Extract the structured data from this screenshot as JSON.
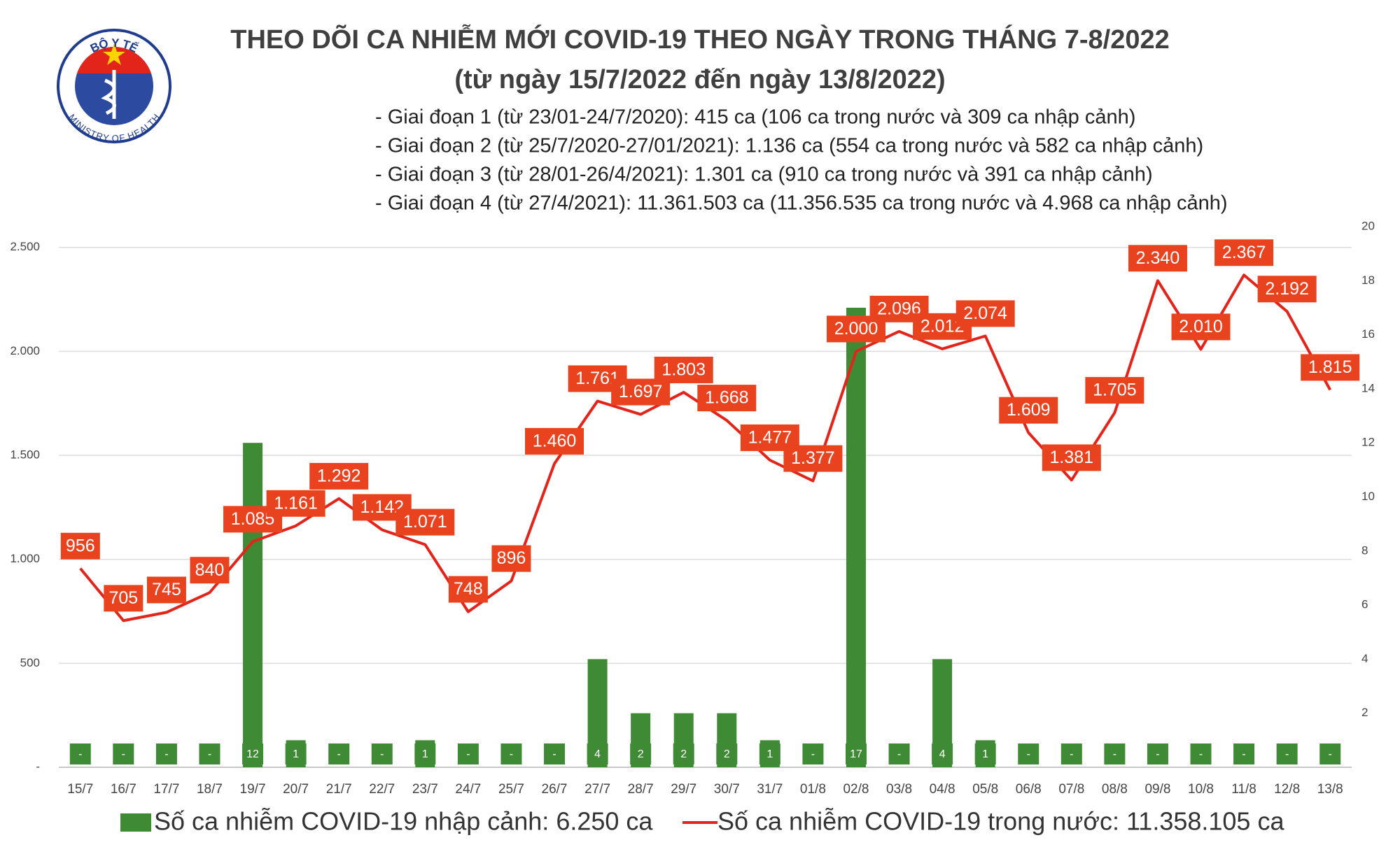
{
  "logo": {
    "top_text": "BỘ Y TẾ",
    "bottom_text": "MINISTRY OF HEALTH"
  },
  "chart_data": {
    "type": "combo",
    "title": "THEO DÕI CA NHIỄM MỚI COVID-19 THEO NGÀY TRONG THÁNG 7-8/2022",
    "subtitle": "(từ ngày 15/7/2022 đến ngày 13/8/2022)",
    "annotations": [
      "- Giai đoạn 1 (từ 23/01-24/7/2020): 415 ca (106 ca trong nước và 309 ca nhập cảnh)",
      "- Giai đoạn 2 (từ 25/7/2020-27/01/2021): 1.136 ca (554 ca trong nước và 582 ca nhập cảnh)",
      "- Giai đoạn 3 (từ 28/01-26/4/2021): 1.301 ca (910 ca trong nước và 391 ca nhập cảnh)",
      "- Giai đoạn 4 (từ 27/4/2021): 11.361.503 ca (11.356.535 ca trong nước và 4.968 ca nhập cảnh)"
    ],
    "categories": [
      "15/7",
      "16/7",
      "17/7",
      "18/7",
      "19/7",
      "20/7",
      "21/7",
      "22/7",
      "23/7",
      "24/7",
      "25/7",
      "26/7",
      "27/7",
      "28/7",
      "29/7",
      "30/7",
      "31/7",
      "01/8",
      "02/8",
      "03/8",
      "04/8",
      "05/8",
      "06/8",
      "07/8",
      "08/8",
      "09/8",
      "10/8",
      "11/8",
      "12/8",
      "13/8"
    ],
    "series": [
      {
        "name": "Số ca nhiễm COVID-19 nhập cảnh: 6.250 ca",
        "type": "bar",
        "axis": "y2",
        "color": "#3f8a34",
        "values": [
          0,
          0,
          0,
          0,
          12,
          1,
          0,
          0,
          1,
          0,
          0,
          0,
          4,
          2,
          2,
          2,
          1,
          0,
          17,
          0,
          4,
          1,
          0,
          0,
          0,
          0,
          0,
          0,
          0,
          0
        ],
        "value_labels": [
          "-",
          "-",
          "-",
          "-",
          "12",
          "1",
          "-",
          "-",
          "1",
          "-",
          "-",
          "-",
          "4",
          "2",
          "2",
          "2",
          "1",
          "-",
          "17",
          "-",
          "4",
          "1",
          "-",
          "-",
          "-",
          "-",
          "-",
          "-",
          "-",
          "-"
        ]
      },
      {
        "name": "Số ca nhiễm COVID-19 trong nước: 11.358.105 ca",
        "type": "line",
        "color": "#e3241b",
        "values": [
          956,
          705,
          745,
          840,
          1085,
          1161,
          1292,
          1142,
          1071,
          748,
          896,
          1460,
          1761,
          1697,
          1803,
          1668,
          1477,
          1377,
          2000,
          2096,
          2012,
          2074,
          1609,
          1381,
          1705,
          2340,
          2010,
          2367,
          2192,
          1815
        ],
        "value_labels": [
          "956",
          "705",
          "745",
          "840",
          "1.085",
          "1.161",
          "1.292",
          "1.142",
          "1.071",
          "748",
          "896",
          "1.460",
          "1.761",
          "1.697",
          "1.803",
          "1.668",
          "1.477",
          "1.377",
          "2.000",
          "2.096",
          "2.012",
          "2.074",
          "1.609",
          "1.381",
          "1.705",
          "2.340",
          "2.010",
          "2.367",
          "2.192",
          "1.815"
        ]
      }
    ],
    "ylim": [
      0,
      2600
    ],
    "yticks": [
      {
        "value": 0,
        "label": "-"
      },
      500,
      {
        "value": 1000,
        "label": "1.000"
      },
      {
        "value": 1500,
        "label": "1.500"
      },
      {
        "value": 2000,
        "label": "2.000"
      },
      {
        "value": 2500,
        "label": "2.500"
      }
    ],
    "y2lim": [
      0,
      20
    ],
    "y2ticks": [
      2,
      4,
      6,
      8,
      10,
      12,
      14,
      16,
      18,
      20
    ],
    "grid": true
  }
}
